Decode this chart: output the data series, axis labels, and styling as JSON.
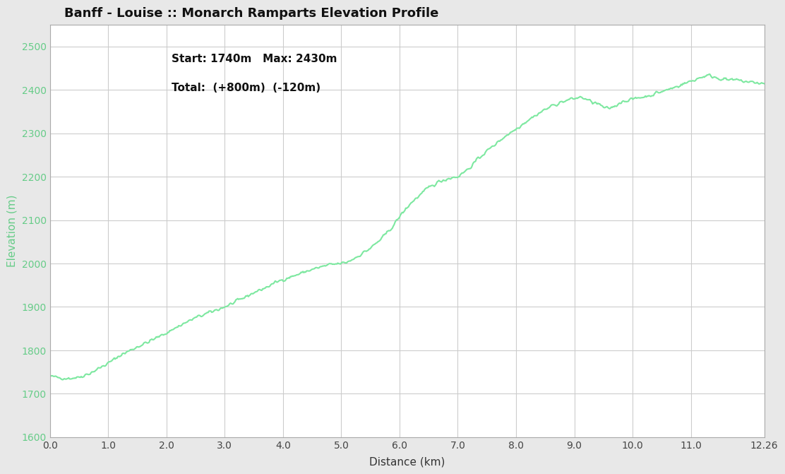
{
  "title": "Banff - Louise :: Monarch Ramparts Elevation Profile",
  "subtitle1": "Start: 1740m   Max: 2430m",
  "subtitle2": "Total:  (+800m)  (-120m)",
  "xlabel": "Distance (km)",
  "ylabel": "Elevation (m)",
  "xlim": [
    0.0,
    12.26
  ],
  "ylim": [
    1600,
    2550
  ],
  "yticks": [
    1600,
    1700,
    1800,
    1900,
    2000,
    2100,
    2200,
    2300,
    2400,
    2500
  ],
  "xticks": [
    0.0,
    1.0,
    2.0,
    3.0,
    4.0,
    5.0,
    6.0,
    7.0,
    8.0,
    9.0,
    10.0,
    11.0,
    12.26
  ],
  "line_color": "#7de8a0",
  "background_color": "#e8e8e8",
  "plot_bg_color": "#ffffff",
  "grid_color": "#cccccc",
  "tick_color": "#66cc88",
  "title_fontsize": 13,
  "subtitle_fontsize": 11,
  "axis_label_fontsize": 11
}
